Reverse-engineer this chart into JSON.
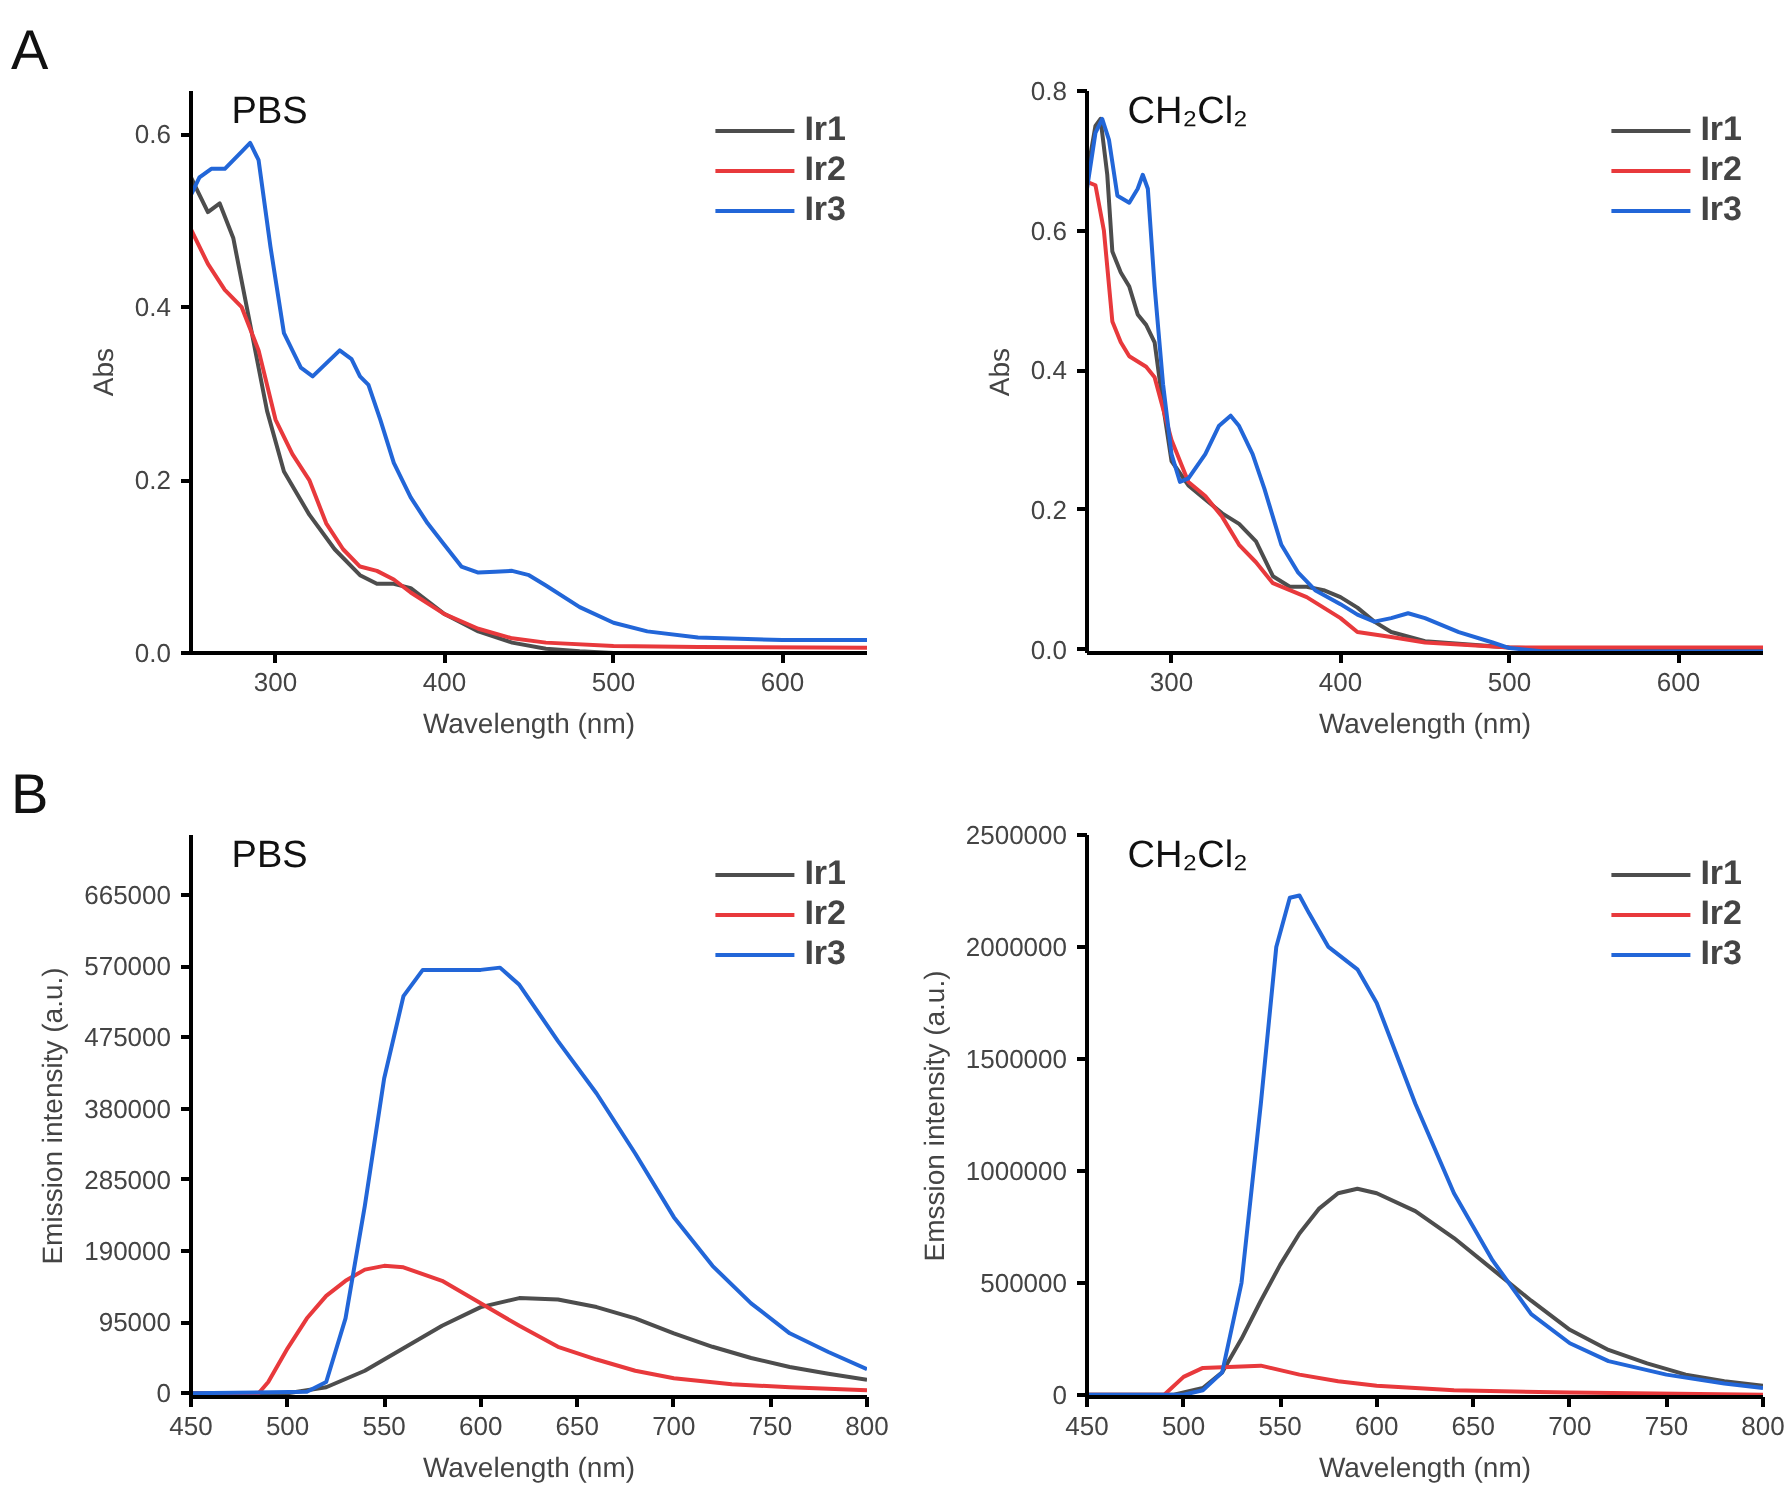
{
  "chart_data": [
    {
      "type": "line",
      "title": "PBS",
      "annotations": [
        "A"
      ],
      "xlabel": "Wavelength (nm)",
      "ylabel": "Abs",
      "xlim": [
        250,
        650
      ],
      "ylim": [
        0,
        0.65
      ],
      "xticks": [
        300,
        400,
        500,
        600
      ],
      "yticks": [
        {
          "value": 0,
          "label": "0.0"
        },
        {
          "value": 0.2,
          "label": "0.2"
        },
        {
          "value": 0.4,
          "label": "0.4"
        },
        {
          "value": 0.6,
          "label": "0.6"
        }
      ],
      "grid": false,
      "legend": "top right",
      "series": [
        {
          "name": "Ir1",
          "color": "#4d4d4d",
          "x": [
            250,
            255,
            260,
            267,
            275,
            285,
            295,
            305,
            320,
            335,
            350,
            360,
            370,
            380,
            390,
            400,
            420,
            440,
            460,
            480,
            500,
            550,
            650
          ],
          "values": [
            0.55,
            0.53,
            0.51,
            0.52,
            0.48,
            0.38,
            0.28,
            0.21,
            0.16,
            0.12,
            0.09,
            0.08,
            0.08,
            0.075,
            0.06,
            0.045,
            0.025,
            0.012,
            0.005,
            0.002,
            0.0,
            0.0,
            0.0
          ]
        },
        {
          "name": "Ir2",
          "color": "#e8393c",
          "x": [
            250,
            260,
            270,
            280,
            290,
            300,
            310,
            320,
            330,
            340,
            350,
            360,
            370,
            380,
            400,
            420,
            440,
            460,
            500,
            550,
            650
          ],
          "values": [
            0.49,
            0.45,
            0.42,
            0.4,
            0.35,
            0.27,
            0.23,
            0.2,
            0.15,
            0.12,
            0.1,
            0.095,
            0.085,
            0.07,
            0.045,
            0.028,
            0.017,
            0.012,
            0.008,
            0.007,
            0.006
          ]
        },
        {
          "name": "Ir3",
          "color": "#2266d8",
          "x": [
            250,
            255,
            262,
            270,
            280,
            285,
            290,
            297,
            305,
            315,
            322,
            330,
            338,
            345,
            350,
            355,
            362,
            370,
            380,
            390,
            400,
            410,
            420,
            430,
            440,
            450,
            460,
            480,
            500,
            520,
            550,
            600,
            650
          ],
          "values": [
            0.53,
            0.55,
            0.56,
            0.56,
            0.58,
            0.59,
            0.57,
            0.47,
            0.37,
            0.33,
            0.32,
            0.335,
            0.35,
            0.34,
            0.32,
            0.31,
            0.27,
            0.22,
            0.18,
            0.15,
            0.125,
            0.1,
            0.093,
            0.094,
            0.095,
            0.09,
            0.078,
            0.053,
            0.035,
            0.025,
            0.018,
            0.015,
            0.015
          ]
        }
      ]
    },
    {
      "type": "line",
      "title": "CH₂Cl₂",
      "xlabel": "Wavelength (nm)",
      "ylabel": "Abs",
      "xlim": [
        250,
        650
      ],
      "ylim": [
        -0.005,
        0.8
      ],
      "xticks": [
        300,
        400,
        500,
        600
      ],
      "yticks": [
        {
          "value": 0,
          "label": "0.0"
        },
        {
          "value": 0.2,
          "label": "0.2"
        },
        {
          "value": 0.4,
          "label": "0.4"
        },
        {
          "value": 0.6,
          "label": "0.6"
        },
        {
          "value": 0.8,
          "label": "0.8"
        }
      ],
      "grid": false,
      "legend": "top right",
      "series": [
        {
          "name": "Ir1",
          "color": "#4d4d4d",
          "x": [
            250,
            255,
            258,
            262,
            265,
            270,
            275,
            280,
            285,
            290,
            295,
            300,
            310,
            320,
            330,
            340,
            350,
            360,
            370,
            380,
            390,
            400,
            410,
            420,
            430,
            450,
            500,
            550,
            650
          ],
          "values": [
            0.68,
            0.75,
            0.76,
            0.68,
            0.57,
            0.54,
            0.52,
            0.48,
            0.465,
            0.44,
            0.35,
            0.27,
            0.235,
            0.215,
            0.195,
            0.18,
            0.155,
            0.105,
            0.09,
            0.09,
            0.085,
            0.075,
            0.06,
            0.04,
            0.025,
            0.012,
            0.003,
            -0.002,
            -0.002
          ]
        },
        {
          "name": "Ir2",
          "color": "#e8393c",
          "x": [
            250,
            255,
            260,
            265,
            270,
            275,
            285,
            290,
            300,
            310,
            320,
            330,
            340,
            350,
            360,
            370,
            380,
            390,
            400,
            410,
            430,
            450,
            500,
            650
          ],
          "values": [
            0.67,
            0.665,
            0.6,
            0.47,
            0.44,
            0.42,
            0.405,
            0.39,
            0.3,
            0.24,
            0.22,
            0.19,
            0.15,
            0.125,
            0.095,
            0.085,
            0.075,
            0.06,
            0.045,
            0.025,
            0.018,
            0.01,
            0.003,
            0.003
          ]
        },
        {
          "name": "Ir3",
          "color": "#2266d8",
          "x": [
            250,
            255,
            259,
            263,
            268,
            275,
            280,
            283,
            286,
            290,
            295,
            300,
            305,
            310,
            320,
            328,
            335,
            340,
            348,
            355,
            365,
            375,
            385,
            400,
            410,
            420,
            430,
            440,
            450,
            470,
            490,
            500,
            520,
            650
          ],
          "values": [
            0.66,
            0.74,
            0.76,
            0.73,
            0.65,
            0.64,
            0.66,
            0.68,
            0.66,
            0.52,
            0.38,
            0.28,
            0.24,
            0.245,
            0.28,
            0.32,
            0.335,
            0.32,
            0.28,
            0.23,
            0.15,
            0.11,
            0.085,
            0.065,
            0.05,
            0.04,
            0.045,
            0.052,
            0.045,
            0.025,
            0.01,
            0.002,
            -0.003,
            -0.003
          ]
        }
      ]
    },
    {
      "type": "line",
      "title": "PBS",
      "annotations": [
        "B"
      ],
      "xlabel": "Wavelength (nm)",
      "ylabel": "Emission intensity (a.u.)",
      "xlim": [
        450,
        800
      ],
      "ylim": [
        -5000,
        745000
      ],
      "xticks": [
        450,
        500,
        550,
        600,
        650,
        700,
        750,
        800
      ],
      "yticks": [
        {
          "value": 0,
          "label": "0"
        },
        {
          "value": 95000,
          "label": "95000"
        },
        {
          "value": 190000,
          "label": "190000"
        },
        {
          "value": 285000,
          "label": "285000"
        },
        {
          "value": 380000,
          "label": "380000"
        },
        {
          "value": 475000,
          "label": "475000"
        },
        {
          "value": 570000,
          "label": "570000"
        },
        {
          "value": 665000,
          "label": "665000"
        }
      ],
      "grid": false,
      "legend": "top right",
      "series": [
        {
          "name": "Ir1",
          "color": "#4d4d4d",
          "x": [
            450,
            500,
            520,
            540,
            560,
            580,
            600,
            620,
            640,
            660,
            680,
            700,
            720,
            740,
            760,
            780,
            800
          ],
          "values": [
            0,
            0,
            8000,
            30000,
            60000,
            90000,
            115000,
            127000,
            125000,
            115000,
            100000,
            80000,
            62000,
            47000,
            35000,
            26000,
            18000
          ]
        },
        {
          "name": "Ir2",
          "color": "#e8393c",
          "x": [
            450,
            485,
            490,
            500,
            510,
            520,
            530,
            540,
            550,
            560,
            580,
            600,
            620,
            640,
            660,
            680,
            700,
            730,
            760,
            800
          ],
          "values": [
            0,
            0,
            15000,
            60000,
            100000,
            130000,
            150000,
            165000,
            170000,
            168000,
            150000,
            120000,
            90000,
            62000,
            45000,
            30000,
            20000,
            12000,
            8000,
            4000
          ]
        },
        {
          "name": "Ir3",
          "color": "#2266d8",
          "x": [
            450,
            510,
            520,
            530,
            540,
            550,
            560,
            570,
            580,
            600,
            610,
            620,
            640,
            660,
            680,
            700,
            720,
            740,
            760,
            780,
            800
          ],
          "values": [
            0,
            2000,
            15000,
            100000,
            250000,
            420000,
            530000,
            565000,
            565000,
            565000,
            568000,
            545000,
            470000,
            400000,
            320000,
            235000,
            170000,
            120000,
            80000,
            55000,
            32000
          ]
        }
      ]
    },
    {
      "type": "line",
      "title": "CH₂Cl₂",
      "xlabel": "Wavelength (nm)",
      "ylabel": "Emssion intensity (a.u.)",
      "xlim": [
        450,
        800
      ],
      "ylim": [
        -10000,
        2500000
      ],
      "xticks": [
        450,
        500,
        550,
        600,
        650,
        700,
        750,
        800
      ],
      "yticks": [
        {
          "value": 0,
          "label": "0"
        },
        {
          "value": 500000,
          "label": "500000"
        },
        {
          "value": 1000000,
          "label": "1000000"
        },
        {
          "value": 1500000,
          "label": "1500000"
        },
        {
          "value": 2000000,
          "label": "2000000"
        },
        {
          "value": 2500000,
          "label": "2500000"
        }
      ],
      "grid": false,
      "legend": "top right",
      "series": [
        {
          "name": "Ir1",
          "color": "#4d4d4d",
          "x": [
            450,
            495,
            510,
            520,
            530,
            540,
            550,
            560,
            570,
            580,
            590,
            600,
            620,
            640,
            660,
            680,
            700,
            720,
            740,
            760,
            780,
            800
          ],
          "values": [
            0,
            0,
            30000,
            100000,
            250000,
            420000,
            580000,
            720000,
            830000,
            900000,
            920000,
            900000,
            820000,
            700000,
            560000,
            420000,
            290000,
            200000,
            140000,
            90000,
            60000,
            40000
          ]
        },
        {
          "name": "Ir2",
          "color": "#e8393c",
          "x": [
            450,
            490,
            500,
            510,
            540,
            560,
            580,
            600,
            640,
            700,
            800
          ],
          "values": [
            0,
            0,
            80000,
            120000,
            130000,
            90000,
            60000,
            40000,
            20000,
            10000,
            0
          ]
        },
        {
          "name": "Ir3",
          "color": "#2266d8",
          "x": [
            450,
            500,
            510,
            520,
            530,
            540,
            548,
            555,
            560,
            565,
            575,
            590,
            600,
            620,
            640,
            660,
            680,
            700,
            720,
            750,
            780,
            800
          ],
          "values": [
            0,
            0,
            20000,
            100000,
            500000,
            1300000,
            2000000,
            2220000,
            2230000,
            2150000,
            2000000,
            1900000,
            1750000,
            1300000,
            900000,
            600000,
            360000,
            230000,
            150000,
            90000,
            50000,
            30000
          ]
        }
      ]
    }
  ]
}
